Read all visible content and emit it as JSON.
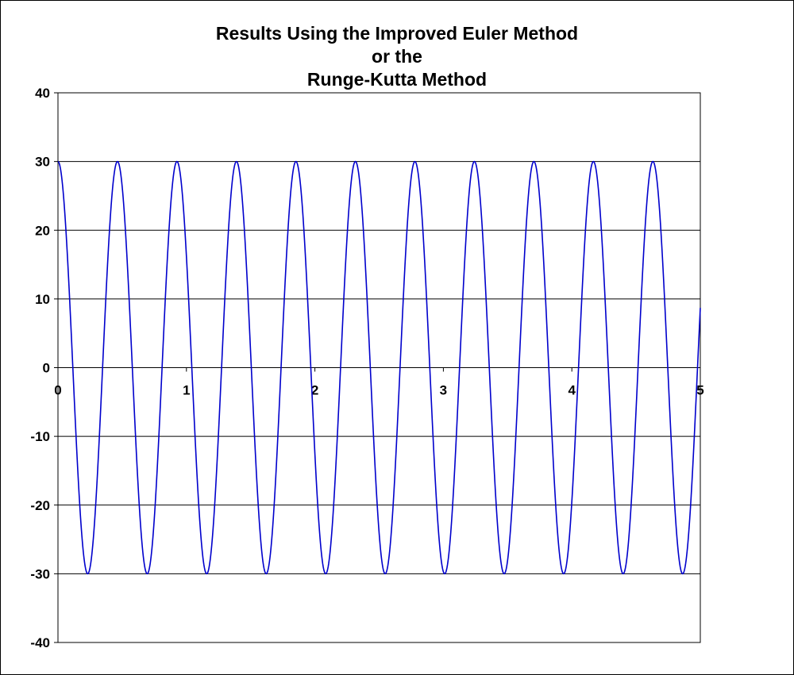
{
  "chart_data": {
    "type": "line",
    "title_lines": [
      "Results Using the Improved Euler Method",
      "or the",
      "Runge-Kutta Method"
    ],
    "xlabel": "",
    "ylabel": "",
    "xlim": [
      0,
      5
    ],
    "ylim": [
      -40,
      40
    ],
    "x_ticks": [
      0,
      1,
      2,
      3,
      4,
      5
    ],
    "y_ticks": [
      40,
      30,
      20,
      10,
      0,
      -10,
      -20,
      -30,
      -40
    ],
    "grid": "horizontal",
    "legend": "none",
    "series": [
      {
        "color": "#0000cc",
        "amplitude": 30,
        "period": 0.4631,
        "initial_value": 30,
        "x_start": 0,
        "x_end": 5,
        "description_points": [
          {
            "x": 0,
            "y": 30
          },
          {
            "x": 0.2316,
            "y": -30
          },
          {
            "x": 0.4631,
            "y": 29.8
          },
          {
            "x": 0.6947,
            "y": -30
          },
          {
            "x": 0.9262,
            "y": 29.8
          },
          {
            "x": 1.1578,
            "y": -30
          },
          {
            "x": 1.3893,
            "y": 29.6
          },
          {
            "x": 1.6209,
            "y": -30
          },
          {
            "x": 1.8524,
            "y": 29.8
          },
          {
            "x": 2.084,
            "y": -30
          },
          {
            "x": 2.3155,
            "y": 29.6
          },
          {
            "x": 2.5471,
            "y": -30
          },
          {
            "x": 2.7786,
            "y": 29.8
          },
          {
            "x": 3.0102,
            "y": -30
          },
          {
            "x": 3.2417,
            "y": 29.6
          },
          {
            "x": 3.4733,
            "y": -30
          },
          {
            "x": 3.7048,
            "y": 29.8
          },
          {
            "x": 3.9364,
            "y": -29.7
          },
          {
            "x": 4.1679,
            "y": 29.8
          },
          {
            "x": 4.3995,
            "y": -30
          },
          {
            "x": 4.631,
            "y": 29.6
          },
          {
            "x": 4.8626,
            "y": -30
          },
          {
            "x": 5.0,
            "y": 2
          }
        ]
      }
    ]
  }
}
